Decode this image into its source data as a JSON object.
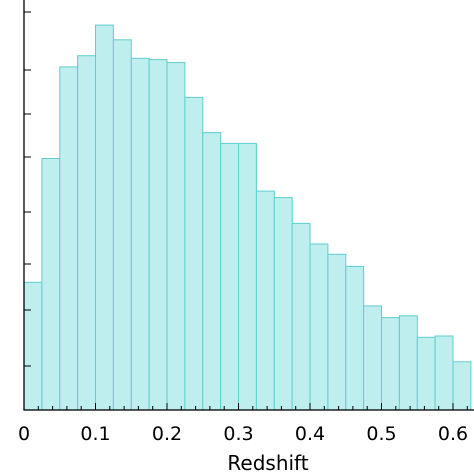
{
  "chart_data": {
    "type": "bar",
    "title": "",
    "xlabel": "Redshift",
    "ylabel": "",
    "xlim": [
      0,
      0.625
    ],
    "ylim": [
      0,
      1
    ],
    "x_tick_labels": [
      "0",
      "0.1",
      "0.2",
      "0.3",
      "0.4",
      "0.5",
      "0.6"
    ],
    "x_tick_values": [
      0,
      0.1,
      0.2,
      0.3,
      0.4,
      0.5,
      0.6
    ],
    "bin_width": 0.025,
    "bin_starts": [
      0,
      0.025,
      0.05,
      0.075,
      0.1,
      0.125,
      0.15,
      0.175,
      0.2,
      0.225,
      0.25,
      0.275,
      0.3,
      0.325,
      0.35,
      0.375,
      0.4,
      0.425,
      0.45,
      0.475,
      0.5,
      0.525,
      0.55,
      0.575,
      0.6
    ],
    "values": [
      0.297,
      0.585,
      0.798,
      0.824,
      0.895,
      0.861,
      0.818,
      0.815,
      0.808,
      0.727,
      0.645,
      0.62,
      0.62,
      0.509,
      0.494,
      0.434,
      0.386,
      0.362,
      0.334,
      0.242,
      0.215,
      0.219,
      0.169,
      0.172,
      0.112
    ],
    "grid": false,
    "legend": "none",
    "colors": {
      "bar_fill": "#bfeeee",
      "bar_edge": "#5fcece"
    }
  }
}
